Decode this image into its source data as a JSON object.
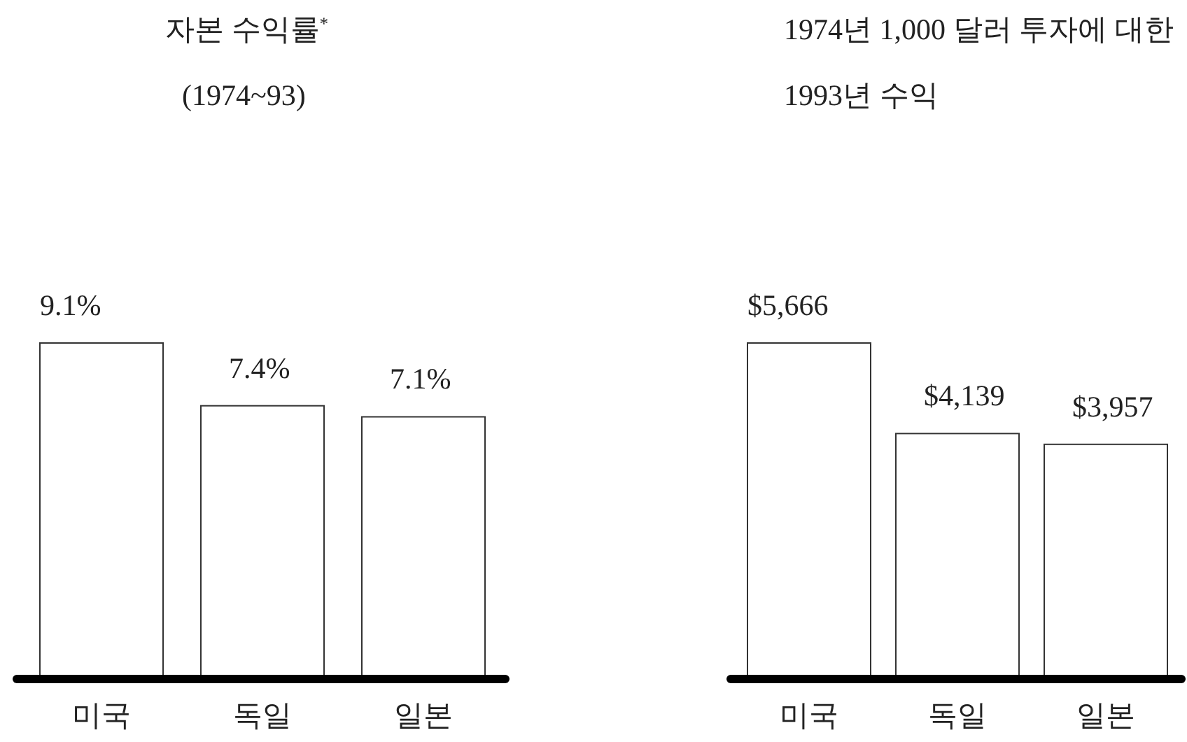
{
  "chart_data": [
    {
      "type": "bar",
      "title": "자본 수익률$^{*}$",
      "subtitle": "(1974~93)",
      "categories": [
        "미국",
        "독일",
        "일본"
      ],
      "values": [
        9.1,
        7.4,
        7.1
      ],
      "value_labels": [
        "9.1%",
        "7.4%",
        "7.1%"
      ],
      "color": "#ffffff"
    },
    {
      "type": "bar",
      "title": "1974년 1,000 달러 투자에 대한 1993년 수익",
      "categories": [
        "미국",
        "독일",
        "일본"
      ],
      "values": [
        5666,
        4139,
        3957
      ],
      "value_labels": [
        "$5,666",
        "$4,139",
        "$3,957"
      ],
      "color": "#ffffff"
    }
  ]
}
